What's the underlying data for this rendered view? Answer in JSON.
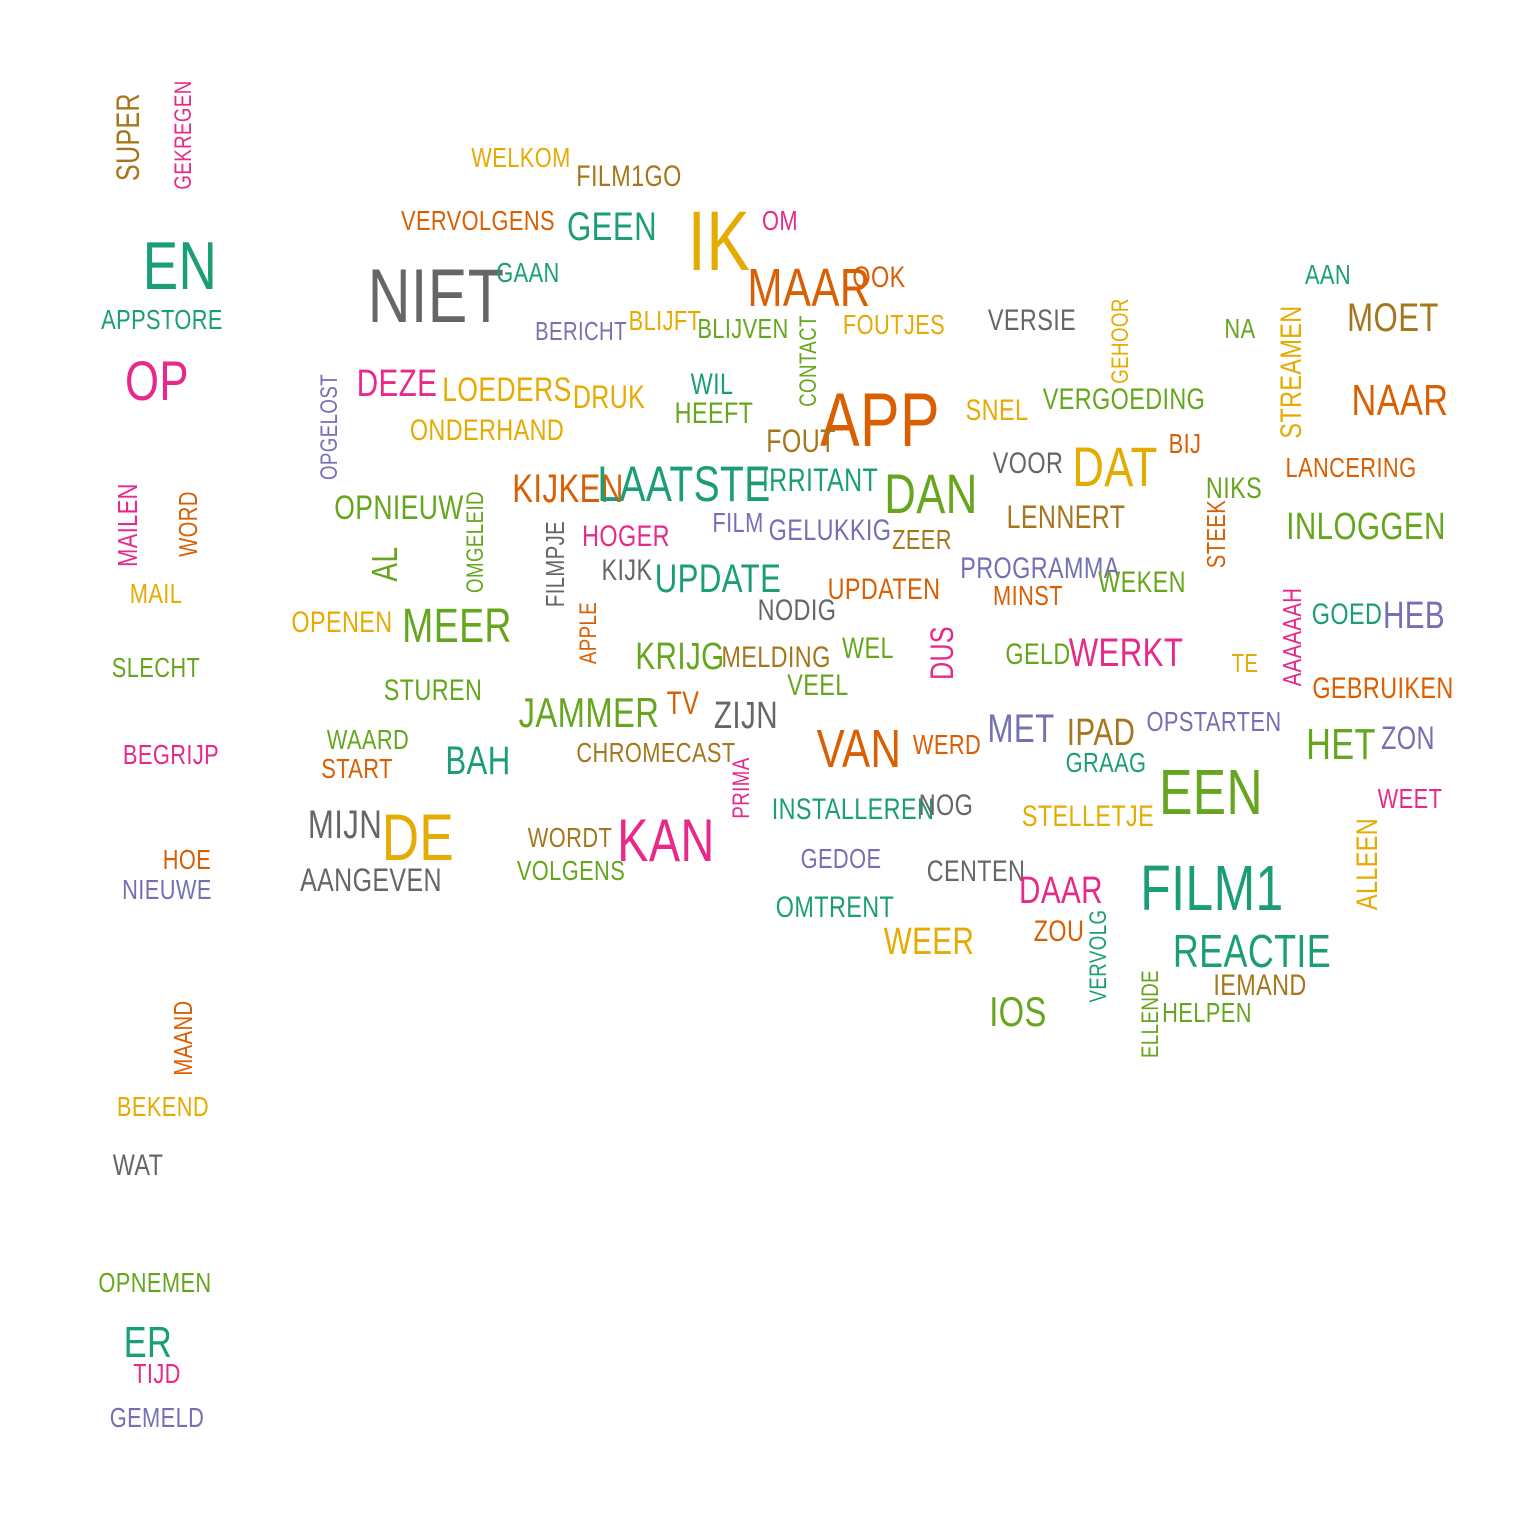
{
  "palette": {
    "teal": "#1b9e77",
    "orange": "#d95f02",
    "purple": "#7570b3",
    "pink": "#e7298a",
    "green": "#66a61e",
    "gold": "#e6ab02",
    "brown": "#a6761d",
    "gray": "#666666"
  },
  "words": [
    {
      "text": "SUPER",
      "color": "brown"
    },
    {
      "text": "GEKREGEN",
      "color": "pink"
    },
    {
      "text": "EN",
      "color": "teal"
    },
    {
      "text": "Appstore",
      "color": "teal"
    },
    {
      "text": "OP",
      "color": "pink"
    },
    {
      "text": "MAILEN",
      "color": "pink"
    },
    {
      "text": "WORD",
      "color": "orange"
    },
    {
      "text": "MAIL",
      "color": "gold"
    },
    {
      "text": "SLECHT",
      "color": "green"
    },
    {
      "text": "BEGRIJP",
      "color": "pink"
    },
    {
      "text": "HOE",
      "color": "orange"
    },
    {
      "text": "NIEUWE",
      "color": "purple"
    },
    {
      "text": "MAAND",
      "color": "orange"
    },
    {
      "text": "BEKEND",
      "color": "gold"
    },
    {
      "text": "Wat",
      "color": "gray"
    },
    {
      "text": "OPNEMEN",
      "color": "green"
    },
    {
      "text": "ER",
      "color": "teal"
    },
    {
      "text": "TIJD",
      "color": "pink"
    },
    {
      "text": "GEMELD",
      "color": "purple"
    },
    {
      "text": "WELKOM",
      "color": "gold"
    },
    {
      "text": "FILM1GO",
      "color": "brown"
    },
    {
      "text": "VERVOLGENS",
      "color": "orange"
    },
    {
      "text": "GEEN",
      "color": "teal"
    },
    {
      "text": "IK",
      "color": "gold"
    },
    {
      "text": "OM",
      "color": "pink"
    },
    {
      "text": "NIET",
      "color": "gray"
    },
    {
      "text": "GAAN",
      "color": "teal"
    },
    {
      "text": "MAAR",
      "color": "orange"
    },
    {
      "text": "OOK",
      "color": "orange"
    },
    {
      "text": "AAN",
      "color": "teal"
    },
    {
      "text": "BERICHT",
      "color": "purple"
    },
    {
      "text": "BLIJFT",
      "color": "gold"
    },
    {
      "text": "BLIJVEN",
      "color": "green"
    },
    {
      "text": "CONTACT",
      "color": "green"
    },
    {
      "text": "FOUTJES",
      "color": "gold"
    },
    {
      "text": "VERSIE",
      "color": "gray"
    },
    {
      "text": "GEHOOR",
      "color": "gold"
    },
    {
      "text": "NA",
      "color": "green"
    },
    {
      "text": "STREAMEN",
      "color": "gold"
    },
    {
      "text": "MOET",
      "color": "brown"
    },
    {
      "text": "OPGELOST",
      "color": "purple"
    },
    {
      "text": "DEZE",
      "color": "pink"
    },
    {
      "text": "LOEDERS",
      "color": "gold"
    },
    {
      "text": "DRUK",
      "color": "gold"
    },
    {
      "text": "Wil",
      "color": "teal"
    },
    {
      "text": "HEEFT",
      "color": "green"
    },
    {
      "text": "APP",
      "color": "orange"
    },
    {
      "text": "SNEL",
      "color": "gold"
    },
    {
      "text": "VERGOEDING",
      "color": "green"
    },
    {
      "text": "NAAR",
      "color": "orange"
    },
    {
      "text": "ONDERHAND",
      "color": "gold"
    },
    {
      "text": "FOUT",
      "color": "brown"
    },
    {
      "text": "BIJ",
      "color": "orange"
    },
    {
      "text": "DAT",
      "color": "gold"
    },
    {
      "text": "VOOR",
      "color": "gray"
    },
    {
      "text": "LANCERING",
      "color": "orange"
    },
    {
      "text": "KIJKEN",
      "color": "orange"
    },
    {
      "text": "LAATSTE",
      "color": "teal"
    },
    {
      "text": "Irritant",
      "color": "teal"
    },
    {
      "text": "DAN",
      "color": "green"
    },
    {
      "text": "NIKS",
      "color": "green"
    },
    {
      "text": "OPNIEUW",
      "color": "green"
    },
    {
      "text": "OMGELEID",
      "color": "green"
    },
    {
      "text": "AL",
      "color": "green"
    },
    {
      "text": "FILMPJE",
      "color": "gray"
    },
    {
      "text": "HOGER",
      "color": "pink"
    },
    {
      "text": "FILM",
      "color": "purple"
    },
    {
      "text": "GELUKKIG",
      "color": "purple"
    },
    {
      "text": "ZEER",
      "color": "brown"
    },
    {
      "text": "LENNERT",
      "color": "brown"
    },
    {
      "text": "STEEK",
      "color": "orange"
    },
    {
      "text": "INLOGGEN",
      "color": "green"
    },
    {
      "text": "KIJK",
      "color": "gray"
    },
    {
      "text": "UPDATE",
      "color": "teal"
    },
    {
      "text": "PROGRAMMA",
      "color": "purple"
    },
    {
      "text": "WEKEN",
      "color": "green"
    },
    {
      "text": "MINST",
      "color": "orange"
    },
    {
      "text": "UPDATEN",
      "color": "orange"
    },
    {
      "text": "NODIG",
      "color": "gray"
    },
    {
      "text": "OPENEN",
      "color": "gold"
    },
    {
      "text": "MEER",
      "color": "green"
    },
    {
      "text": "APPLE",
      "color": "orange"
    },
    {
      "text": "AAAAAAH",
      "color": "pink"
    },
    {
      "text": "GOED",
      "color": "teal"
    },
    {
      "text": "HEB",
      "color": "purple"
    },
    {
      "text": "KRIJG",
      "color": "green"
    },
    {
      "text": "MELDING",
      "color": "brown"
    },
    {
      "text": "WEL",
      "color": "green"
    },
    {
      "text": "DUS",
      "color": "pink"
    },
    {
      "text": "GELD",
      "color": "green"
    },
    {
      "text": "WERKT",
      "color": "pink"
    },
    {
      "text": "TE",
      "color": "gold"
    },
    {
      "text": "VEEL",
      "color": "green"
    },
    {
      "text": "GEBRUIKEN",
      "color": "orange"
    },
    {
      "text": "STUREN",
      "color": "green"
    },
    {
      "text": "JAMMER",
      "color": "green"
    },
    {
      "text": "TV",
      "color": "orange"
    },
    {
      "text": "ZIJN",
      "color": "gray"
    },
    {
      "text": "MET",
      "color": "purple"
    },
    {
      "text": "IPAD",
      "color": "brown"
    },
    {
      "text": "OPSTARTEN",
      "color": "purple"
    },
    {
      "text": "WAARD",
      "color": "green"
    },
    {
      "text": "START",
      "color": "orange"
    },
    {
      "text": "BAH",
      "color": "teal"
    },
    {
      "text": "CHROMECAST",
      "color": "brown"
    },
    {
      "text": "VAN",
      "color": "orange"
    },
    {
      "text": "WERD",
      "color": "orange"
    },
    {
      "text": "GRAAG",
      "color": "teal"
    },
    {
      "text": "HET",
      "color": "green"
    },
    {
      "text": "ZON",
      "color": "purple"
    },
    {
      "text": "EEN",
      "color": "green"
    },
    {
      "text": "WEET",
      "color": "pink"
    },
    {
      "text": "PRIMA",
      "color": "pink"
    },
    {
      "text": "INSTALLEREN",
      "color": "teal"
    },
    {
      "text": "NOG",
      "color": "gray"
    },
    {
      "text": "STELLETJE",
      "color": "gold"
    },
    {
      "text": "MIJN",
      "color": "gray"
    },
    {
      "text": "DE",
      "color": "gold"
    },
    {
      "text": "WORDT",
      "color": "brown"
    },
    {
      "text": "KAN",
      "color": "pink"
    },
    {
      "text": "Volgens",
      "color": "green"
    },
    {
      "text": "GEDOE",
      "color": "purple"
    },
    {
      "text": "CENTEN",
      "color": "gray"
    },
    {
      "text": "FILM1",
      "color": "teal"
    },
    {
      "text": "ALLEEN",
      "color": "gold"
    },
    {
      "text": "AANGEVEN",
      "color": "gray"
    },
    {
      "text": "DAAR",
      "color": "pink"
    },
    {
      "text": "OMTRENT",
      "color": "teal"
    },
    {
      "text": "ZOU",
      "color": "orange"
    },
    {
      "text": "VERVOLG",
      "color": "teal"
    },
    {
      "text": "WEER",
      "color": "gold"
    },
    {
      "text": "REACTIE",
      "color": "teal"
    },
    {
      "text": "IEMAND",
      "color": "brown"
    },
    {
      "text": "ELLENDE",
      "color": "green"
    },
    {
      "text": "HELPEN",
      "color": "green"
    },
    {
      "text": "IOS",
      "color": "green"
    }
  ]
}
